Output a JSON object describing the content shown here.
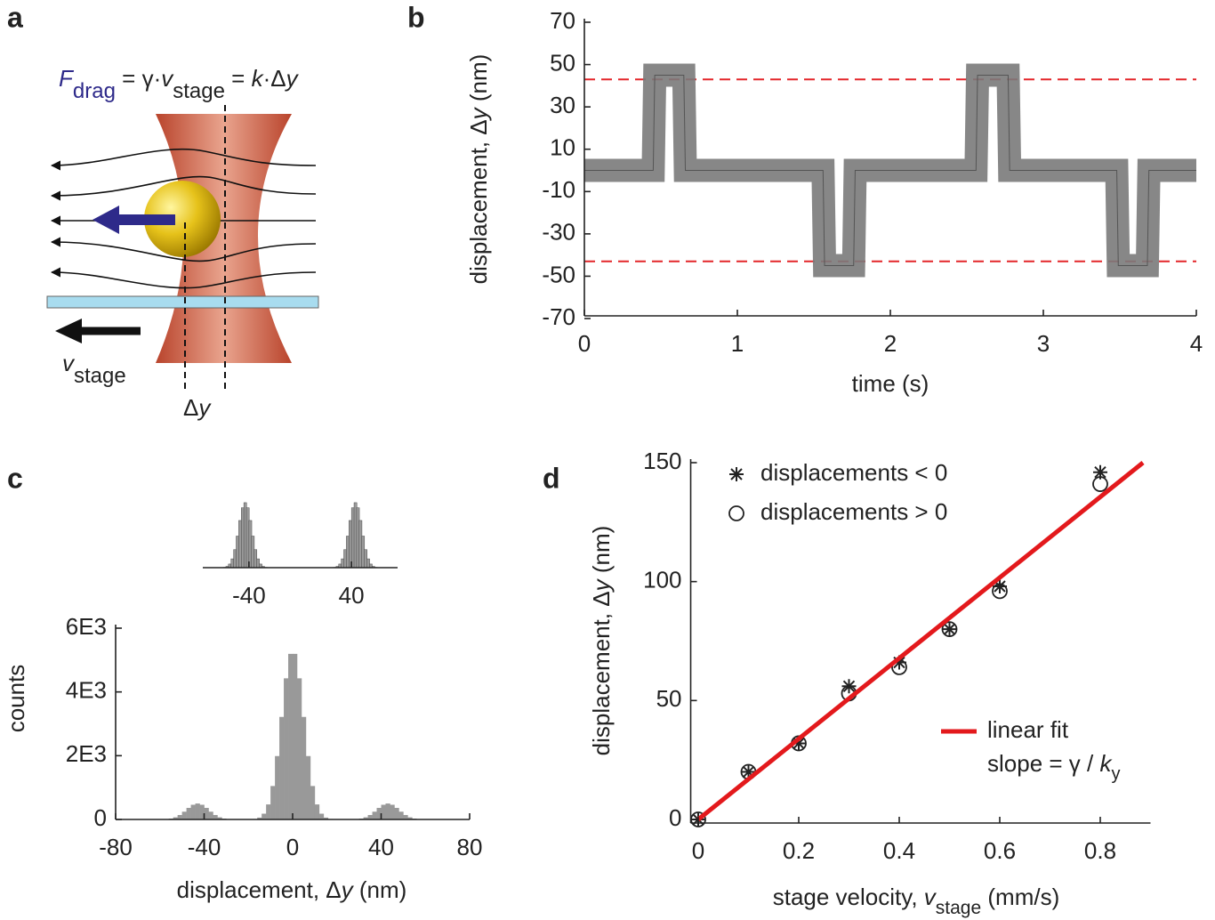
{
  "diagram": {
    "panel_label": "a",
    "formula": [
      "F",
      "drag",
      " = γ·",
      "v",
      "stage",
      " = ",
      "k",
      "·Δ",
      "y"
    ],
    "stage_label": [
      "v",
      "stage"
    ],
    "dy_label": [
      "Δ",
      "y"
    ]
  },
  "chart_data": [
    {
      "type": "line",
      "panel_label": "b",
      "x_label": "time (s)",
      "y_label": [
        "displacement, Δ",
        "y",
        " (nm)"
      ],
      "x": [
        0,
        0.45,
        0.46,
        0.65,
        0.66,
        1.56,
        1.57,
        1.76,
        1.77,
        2.56,
        2.57,
        2.77,
        2.78,
        3.48,
        3.49,
        3.68,
        3.69,
        4
      ],
      "values": [
        0,
        0,
        45,
        45,
        0,
        0,
        -45,
        -45,
        0,
        0,
        45,
        45,
        0,
        0,
        -45,
        -45,
        0,
        0
      ],
      "color": "#7a7a7a",
      "xlim": [
        0,
        4
      ],
      "xticks": [
        0,
        1,
        2,
        3,
        4
      ],
      "ylim": [
        -70,
        70
      ],
      "yticks": [
        70,
        50,
        30,
        10,
        -10,
        -30,
        -50,
        -70
      ],
      "hlines": [
        43,
        -43
      ],
      "hline_color": "#e3262a"
    },
    {
      "type": "histogram",
      "panel_label": "c",
      "x_label": [
        "displacement, Δ",
        "y",
        " (nm)"
      ],
      "y_label": "counts",
      "bins": [
        -60,
        -58,
        -56,
        -54,
        -52,
        -50,
        -48,
        -46,
        -44,
        -42,
        -40,
        -38,
        -36,
        -34,
        -32,
        -30,
        -28,
        -26,
        -24,
        -22,
        -20,
        -18,
        -16,
        -14,
        -12,
        -10,
        -8,
        -6,
        -4,
        -2,
        0,
        2,
        4,
        6,
        8,
        10,
        12,
        14,
        16,
        18,
        20,
        22,
        24,
        26,
        28,
        30,
        32,
        34,
        36,
        38,
        40,
        42,
        44,
        46,
        48,
        50,
        52,
        54,
        56,
        58,
        60
      ],
      "values": [
        3,
        10,
        28,
        68,
        139,
        243,
        363,
        461,
        500,
        461,
        363,
        243,
        139,
        68,
        28,
        10,
        3,
        1,
        0,
        0,
        4,
        16,
        59,
        181,
        471,
        1049,
        1988,
        3216,
        4427,
        5194,
        5194,
        4427,
        3216,
        1988,
        1049,
        471,
        181,
        59,
        16,
        4,
        0,
        0,
        1,
        3,
        10,
        28,
        68,
        139,
        243,
        363,
        461,
        500,
        461,
        363,
        243,
        139,
        68,
        28,
        10,
        3
      ],
      "color": "#999999",
      "xlim": [
        -80,
        80
      ],
      "xticks": [
        -80,
        -40,
        0,
        40,
        80
      ],
      "ylim": [
        0,
        6000
      ],
      "yticks": [
        0,
        {
          "value": 2000,
          "label": "2E3"
        },
        {
          "value": 4000,
          "label": "4E3"
        },
        {
          "value": 6000,
          "label": "6E3"
        }
      ]
    },
    {
      "type": "histogram",
      "bins": [
        -60,
        -58,
        -56,
        -54,
        -52,
        -50,
        -48,
        -46,
        -44,
        -42,
        -40,
        -38,
        -36,
        -34,
        -32,
        -30,
        -28,
        -26,
        -24,
        -22,
        -20,
        -18,
        -16,
        -14,
        -12,
        -10,
        -8,
        -6,
        -4,
        -2,
        0,
        2,
        4,
        6,
        8,
        10,
        12,
        14,
        16,
        18,
        20,
        22,
        24,
        26,
        28,
        30,
        32,
        34,
        36,
        38,
        40,
        42,
        44,
        46,
        48,
        50,
        52,
        54,
        56,
        58,
        60
      ],
      "values": [
        3,
        10,
        28,
        68,
        139,
        243,
        363,
        461,
        500,
        461,
        363,
        243,
        139,
        68,
        28,
        10,
        3,
        1,
        0,
        0,
        0,
        0,
        0,
        0,
        0,
        0,
        0,
        0,
        0,
        0,
        0,
        0,
        0,
        0,
        0,
        0,
        0,
        0,
        0,
        0,
        0,
        0,
        1,
        3,
        10,
        28,
        68,
        139,
        243,
        363,
        461,
        500,
        461,
        363,
        243,
        139,
        68,
        28,
        10,
        3
      ],
      "color": "#999999",
      "edge_color": "#333333",
      "xlim": [
        -76,
        76
      ],
      "xticks": [
        -40,
        40
      ],
      "ylim": [
        0,
        520
      ]
    },
    {
      "type": "scatter",
      "panel_label": "d",
      "x_label": [
        "stage velocity, ",
        "v",
        "stage",
        " (mm/s)"
      ],
      "y_label": [
        "displacement, Δ",
        "y",
        " (nm)"
      ],
      "xlim": [
        -0.015,
        0.9
      ],
      "xticks": [
        0,
        0.2,
        0.4,
        0.6,
        0.8
      ],
      "ylim": [
        -1,
        150
      ],
      "yticks": [
        0,
        50,
        100,
        150
      ],
      "series": [
        {
          "name": "displacements < 0",
          "marker": "asterisk",
          "color": "#222222",
          "x": [
            0,
            0.1,
            0.2,
            0.3,
            0.4,
            0.5,
            0.6,
            0.8
          ],
          "values": [
            0,
            20,
            32,
            56,
            66,
            80,
            98,
            146
          ]
        },
        {
          "name": "displacements > 0",
          "marker": "circle",
          "color": "#222222",
          "x": [
            0,
            0.1,
            0.2,
            0.3,
            0.4,
            0.5,
            0.6,
            0.8
          ],
          "values": [
            0,
            20,
            32,
            53,
            64,
            80,
            96,
            141
          ]
        },
        {
          "name": "linear fit",
          "marker": "line",
          "color": "#e3191c",
          "x": [
            0,
            0.885
          ],
          "values": [
            0,
            150
          ]
        }
      ],
      "fit_note": [
        "slope = γ / ",
        "k",
        "y"
      ]
    }
  ]
}
